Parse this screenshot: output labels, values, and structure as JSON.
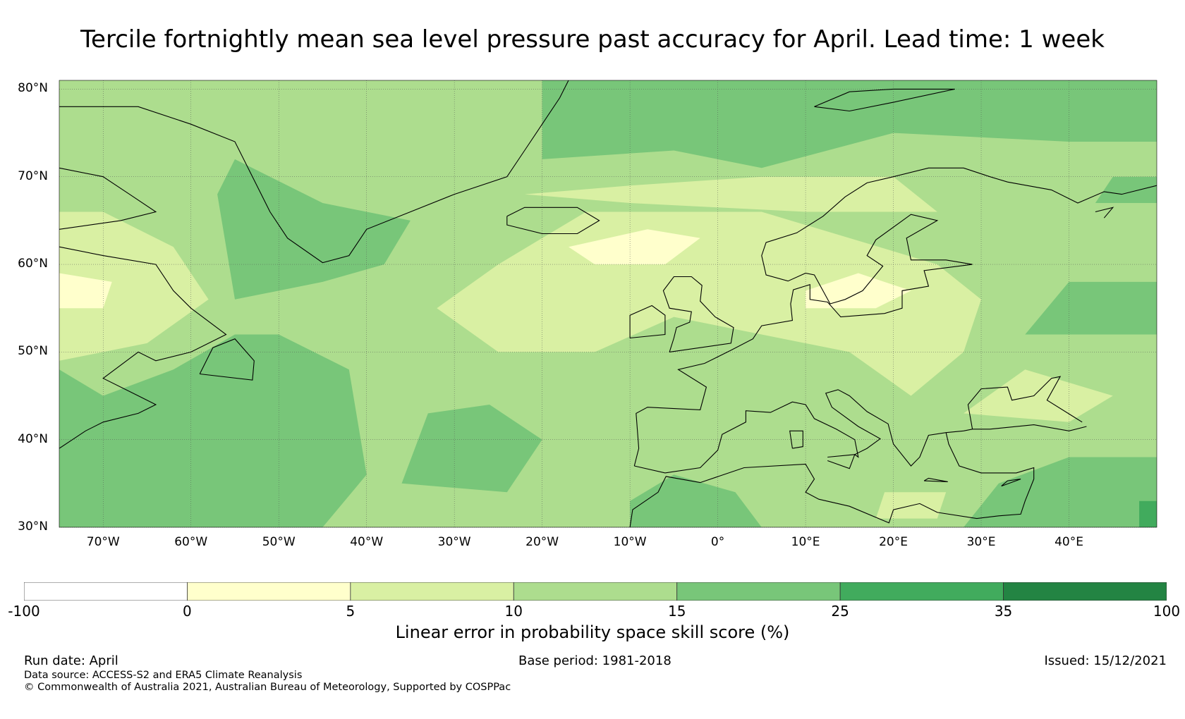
{
  "title": "Tercile fortnightly mean sea level pressure past accuracy for April. Lead time: 1 week",
  "map": {
    "lat_labels": [
      "80°N",
      "70°N",
      "60°N",
      "50°N",
      "40°N",
      "30°N"
    ],
    "lat_values": [
      80,
      70,
      60,
      50,
      40,
      30
    ],
    "lon_labels": [
      "70°W",
      "60°W",
      "50°W",
      "40°W",
      "30°W",
      "20°W",
      "10°W",
      "0°",
      "10°E",
      "20°E",
      "30°E",
      "40°E"
    ],
    "lon_values": [
      -70,
      -60,
      -50,
      -40,
      -30,
      -20,
      -10,
      0,
      10,
      20,
      30,
      40
    ],
    "lon_range": [
      -75,
      50
    ],
    "lat_range": [
      30,
      81
    ],
    "grid": true,
    "land_outline_color": "#000000"
  },
  "colorbar": {
    "label": "Linear error in probability space skill score (%)",
    "ticks": [
      "-100",
      "0",
      "5",
      "10",
      "15",
      "25",
      "35",
      "100"
    ],
    "bins": [
      {
        "from": -100,
        "to": 0,
        "color": "#ffffff"
      },
      {
        "from": 0,
        "to": 5,
        "color": "#ffffcc"
      },
      {
        "from": 5,
        "to": 10,
        "color": "#d9f0a3"
      },
      {
        "from": 10,
        "to": 15,
        "color": "#addd8e"
      },
      {
        "from": 15,
        "to": 25,
        "color": "#78c679"
      },
      {
        "from": 25,
        "to": 35,
        "color": "#41ab5d"
      },
      {
        "from": 35,
        "to": 100,
        "color": "#238443"
      }
    ]
  },
  "footer": {
    "run_date": "Run date: April",
    "base_period": "Base period: 1981-2018",
    "issued": "Issued: 15/12/2021",
    "data_source": "Data source: ACCESS-S2 and ERA5 Climate Reanalysis",
    "copyright": "© Commonwealth of Australia 2021, Australian Bureau of Meteorology, Supported by COSPPac"
  }
}
